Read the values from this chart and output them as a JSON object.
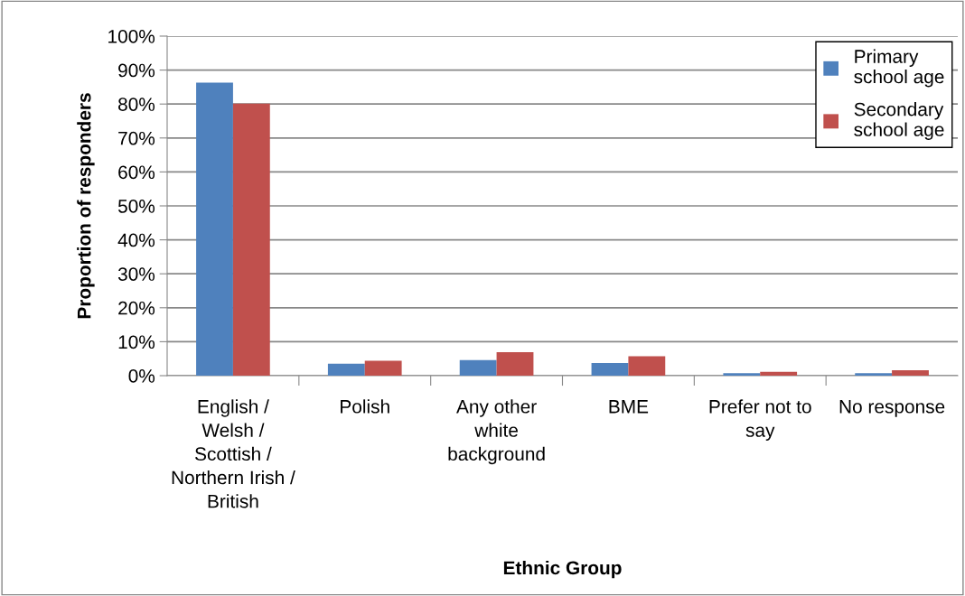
{
  "chart_data": {
    "type": "bar",
    "xlabel": "Ethnic Group",
    "ylabel": "Proportion of responders",
    "categories": [
      "English / Welsh / Scottish / Northern Irish / British",
      "Polish",
      "Any other white background",
      "BME",
      "Prefer not to say",
      "No response"
    ],
    "series": [
      {
        "name": "Primary school age",
        "color": "#4f81bd",
        "values": [
          86.3,
          3.5,
          4.6,
          3.7,
          0.7,
          0.7
        ]
      },
      {
        "name": "Secondary school age",
        "color": "#c0504d",
        "values": [
          80.1,
          4.4,
          6.9,
          5.7,
          1.1,
          1.6
        ]
      }
    ],
    "ylim": [
      0,
      100
    ],
    "yticks": [
      {
        "value": 0,
        "label": "0%"
      },
      {
        "value": 10,
        "label": "10%"
      },
      {
        "value": 20,
        "label": "20%"
      },
      {
        "value": 30,
        "label": "30%"
      },
      {
        "value": 40,
        "label": "40%"
      },
      {
        "value": 50,
        "label": "50%"
      },
      {
        "value": 60,
        "label": "60%"
      },
      {
        "value": 70,
        "label": "70%"
      },
      {
        "value": 80,
        "label": "80%"
      },
      {
        "value": 90,
        "label": "90%"
      },
      {
        "value": 100,
        "label": "100%"
      }
    ],
    "grid": "y",
    "legend": "top right"
  }
}
